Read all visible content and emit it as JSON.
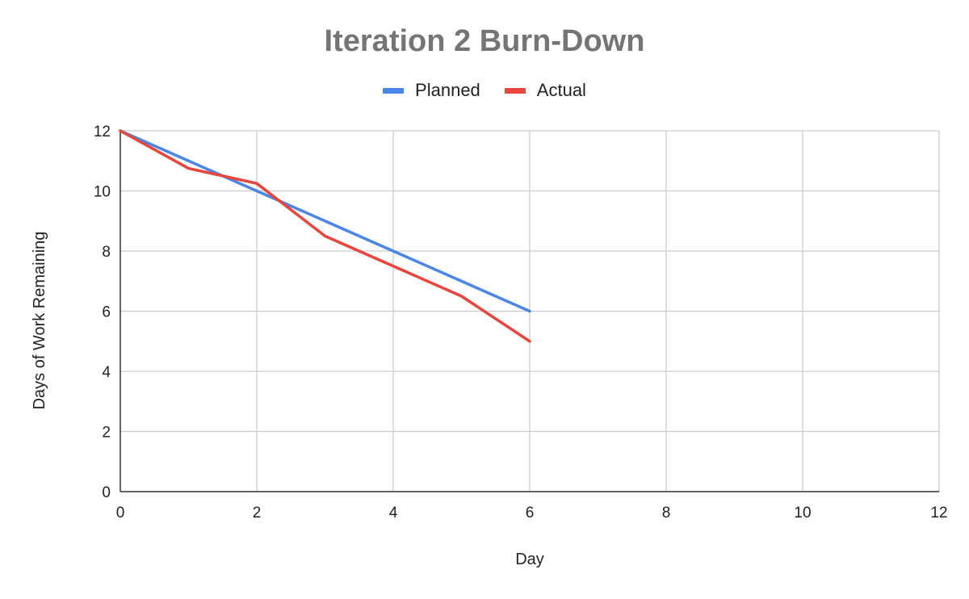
{
  "chart_data": {
    "type": "line",
    "title": "Iteration 2 Burn-Down",
    "xlabel": "Day",
    "ylabel": "Days of Work Remaining",
    "xlim": [
      0,
      12
    ],
    "ylim": [
      0,
      12
    ],
    "xticks": [
      0,
      2,
      4,
      6,
      8,
      10,
      12
    ],
    "yticks": [
      0,
      2,
      4,
      6,
      8,
      10,
      12
    ],
    "grid": true,
    "legend_position": "top-center",
    "series": [
      {
        "name": "Planned",
        "color": "#4a86e8",
        "x": [
          0,
          1,
          2,
          3,
          4,
          5,
          6
        ],
        "y": [
          12,
          11,
          10,
          9,
          8,
          7,
          6
        ]
      },
      {
        "name": "Actual",
        "color": "#e8453c",
        "x": [
          0,
          1,
          2,
          3,
          4,
          5,
          6
        ],
        "y": [
          12,
          10.75,
          10.25,
          8.5,
          7.5,
          6.5,
          5
        ]
      }
    ]
  }
}
